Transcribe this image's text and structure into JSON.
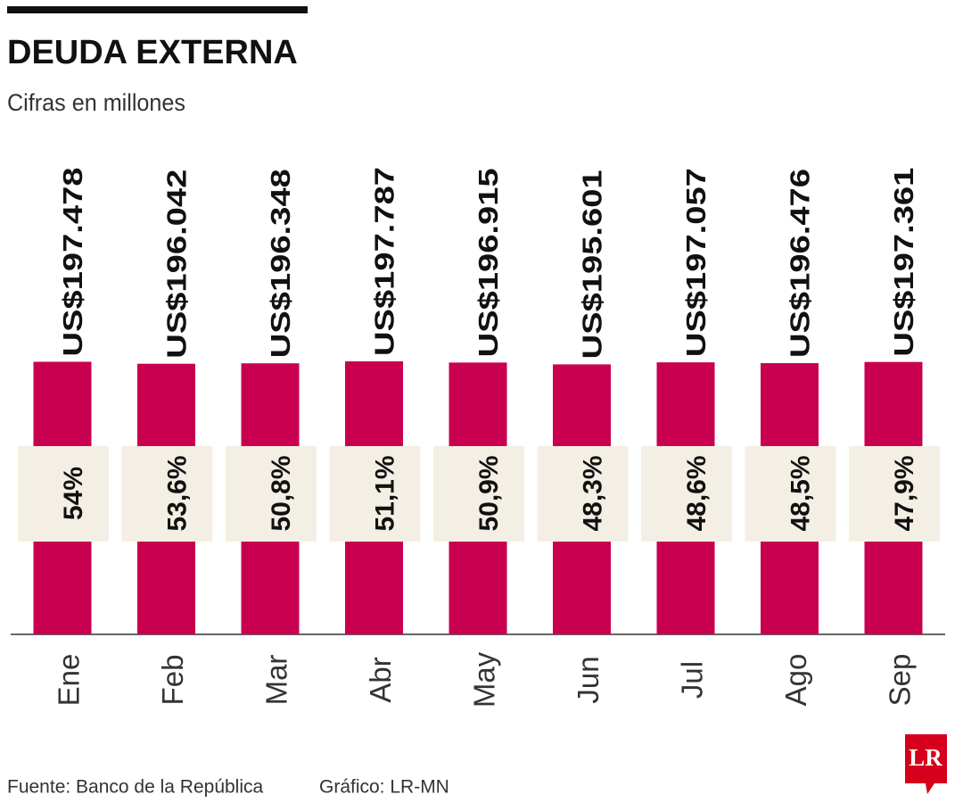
{
  "chart_data": {
    "type": "bar",
    "title": "DEUDA EXTERNA",
    "subtitle": "Cifras en millones",
    "categories": [
      "Ene",
      "Feb",
      "Mar",
      "Abr",
      "May",
      "Jun",
      "Jul",
      "Ago",
      "Sep"
    ],
    "values": [
      197478,
      196042,
      196348,
      197787,
      196915,
      195601,
      197057,
      196476,
      197361
    ],
    "value_labels": [
      "US$197.478",
      "US$196.042",
      "US$196.348",
      "US$197.787",
      "US$196.915",
      "US$195.601",
      "US$197.057",
      "US$196.476",
      "US$197.361"
    ],
    "color": "#c8004f",
    "percentages": {
      "values": [
        54,
        53.6,
        50.8,
        51.1,
        50.9,
        48.3,
        48.6,
        48.5,
        47.9
      ],
      "value_labels": [
        "54%",
        "53,6%",
        "50,8%",
        "51,1%",
        "50,9%",
        "48,3%",
        "48,6%",
        "48,5%",
        "47,9%"
      ],
      "color": "#f4efe4"
    },
    "source": "Fuente: Banco de la República",
    "credit": "Gráfico: LR-MN",
    "logo": "LR"
  }
}
